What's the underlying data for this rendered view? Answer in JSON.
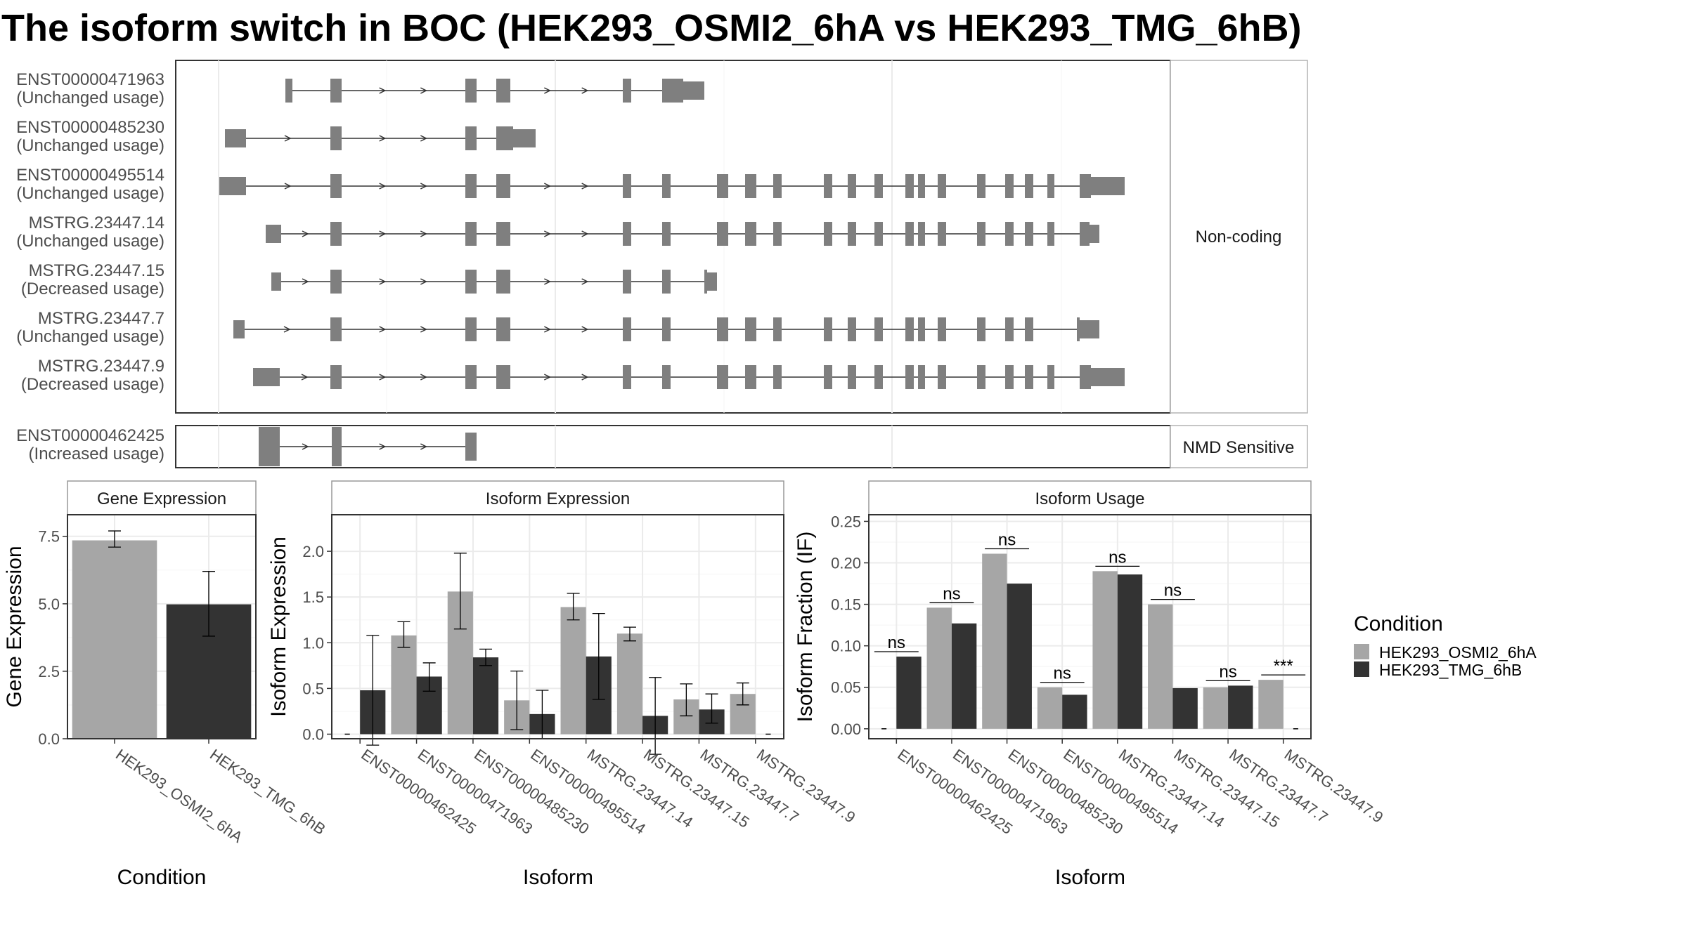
{
  "title": "The isoform switch in BOC (HEK293_OSMI2_6hA vs HEK293_TMG_6hB)",
  "colors": {
    "osmi": "#a6a6a6",
    "tmg": "#333333",
    "exon": "#7f7f7f",
    "grid": "#ebebeb"
  },
  "structure": {
    "noncoding_label": "Non-coding",
    "nmd_label": "NMD Sensitive",
    "transcripts": [
      {
        "id": "ENST00000471963",
        "status": "(Unchanged usage)",
        "group": "Non-coding"
      },
      {
        "id": "ENST00000485230",
        "status": "(Unchanged usage)",
        "group": "Non-coding"
      },
      {
        "id": "ENST00000495514",
        "status": "(Unchanged usage)",
        "group": "Non-coding"
      },
      {
        "id": "MSTRG.23447.14",
        "status": "(Unchanged usage)",
        "group": "Non-coding"
      },
      {
        "id": "MSTRG.23447.15",
        "status": "(Decreased usage)",
        "group": "Non-coding"
      },
      {
        "id": "MSTRG.23447.7",
        "status": "(Unchanged usage)",
        "group": "Non-coding"
      },
      {
        "id": "MSTRG.23447.9",
        "status": "(Decreased usage)",
        "group": "Non-coding"
      },
      {
        "id": "ENST00000462425",
        "status": "(Increased usage)",
        "group": "NMD Sensitive"
      }
    ]
  },
  "chart_data": [
    {
      "type": "bar",
      "title": "Gene Expression",
      "xlabel": "Condition",
      "ylabel": "Gene Expression",
      "ylim": [
        0,
        8.3
      ],
      "yticks": [
        "0.0",
        "2.5",
        "5.0",
        "7.5"
      ],
      "categories": [
        "HEK293_OSMI2_6hA",
        "HEK293_TMG_6hB"
      ],
      "values": [
        7.35,
        4.98
      ],
      "errors": [
        [
          7.1,
          7.7
        ],
        [
          3.8,
          6.2
        ]
      ]
    },
    {
      "type": "bar",
      "title": "Isoform Expression",
      "xlabel": "Isoform",
      "ylabel": "Isoform Expression",
      "ylim": [
        -0.05,
        2.4
      ],
      "yticks": [
        "0.0",
        "0.5",
        "1.0",
        "1.5",
        "2.0"
      ],
      "categories": [
        "ENST00000462425",
        "ENST00000471963",
        "ENST00000485230",
        "ENST00000495514",
        "MSTRG.23447.14",
        "MSTRG.23447.15",
        "MSTRG.23447.7",
        "MSTRG.23447.9"
      ],
      "series": [
        {
          "name": "HEK293_OSMI2_6hA",
          "values": [
            0.0,
            1.08,
            1.56,
            0.37,
            1.39,
            1.1,
            0.38,
            0.44
          ],
          "errors": [
            [
              0,
              0
            ],
            [
              0.95,
              1.23
            ],
            [
              1.15,
              1.98
            ],
            [
              0.05,
              0.69
            ],
            [
              1.25,
              1.54
            ],
            [
              1.02,
              1.17
            ],
            [
              0.2,
              0.55
            ],
            [
              0.32,
              0.56
            ]
          ]
        },
        {
          "name": "HEK293_TMG_6hB",
          "values": [
            0.48,
            0.63,
            0.84,
            0.22,
            0.85,
            0.2,
            0.27,
            0.0
          ],
          "errors": [
            [
              -0.12,
              1.08
            ],
            [
              0.47,
              0.78
            ],
            [
              0.75,
              0.93
            ],
            [
              -0.05,
              0.48
            ],
            [
              0.38,
              1.32
            ],
            [
              -0.22,
              0.62
            ],
            [
              0.12,
              0.44
            ],
            [
              0,
              0
            ]
          ]
        }
      ]
    },
    {
      "type": "bar",
      "title": "Isoform Usage",
      "xlabel": "Isoform",
      "ylabel": "Isoform Fraction (IF)",
      "ylim": [
        -0.012,
        0.258
      ],
      "yticks": [
        "0.00",
        "0.05",
        "0.10",
        "0.15",
        "0.20",
        "0.25"
      ],
      "categories": [
        "ENST00000462425",
        "ENST00000471963",
        "ENST00000485230",
        "ENST00000495514",
        "MSTRG.23447.14",
        "MSTRG.23447.15",
        "MSTRG.23447.7",
        "MSTRG.23447.9"
      ],
      "series": [
        {
          "name": "HEK293_OSMI2_6hA",
          "values": [
            0.0,
            0.146,
            0.211,
            0.05,
            0.19,
            0.15,
            0.05,
            0.059
          ]
        },
        {
          "name": "HEK293_TMG_6hB",
          "values": [
            0.087,
            0.127,
            0.175,
            0.041,
            0.186,
            0.049,
            0.052,
            0.0
          ]
        }
      ],
      "significance": [
        "ns",
        "ns",
        "ns",
        "ns",
        "ns",
        "ns",
        "ns",
        "***"
      ]
    }
  ],
  "legend": {
    "title": "Condition",
    "items": [
      "HEK293_OSMI2_6hA",
      "HEK293_TMG_6hB"
    ]
  }
}
